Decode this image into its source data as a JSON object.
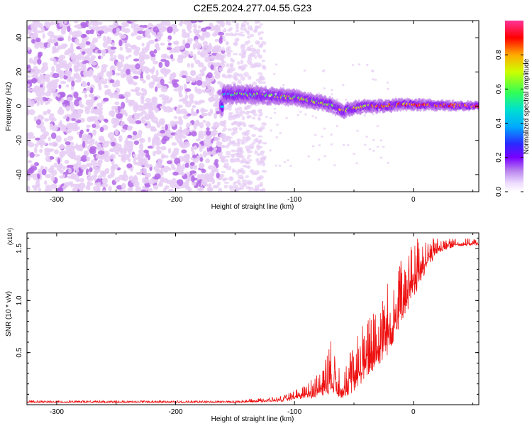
{
  "figure": {
    "title": "C2E5.2024.277.04.55.G23"
  },
  "chart_data": [
    {
      "type": "heatmap",
      "title": "C2E5.2024.277.04.55.G23",
      "xlabel": "Height of straight line (km)",
      "ylabel": "Frequency (Hz)",
      "xlim": [
        -325,
        55
      ],
      "ylim": [
        -50,
        50
      ],
      "x_ticks": [
        -300,
        -200,
        -100,
        0
      ],
      "y_ticks": [
        -40,
        -20,
        0,
        20,
        40
      ],
      "colorbar": {
        "label": "Normalized spectral amplitude",
        "range": [
          0,
          1
        ],
        "ticks": [
          0.0,
          0.2,
          0.4,
          0.6,
          0.8
        ],
        "colors": [
          "#ffffff",
          "#e6ccf5",
          "#b266e6",
          "#7a00ff",
          "#2a2aff",
          "#00ccff",
          "#33ff66",
          "#ccff00",
          "#ff9900",
          "#ff0000",
          "#ff3399"
        ]
      },
      "features": {
        "noise_region_x": [
          -325,
          -160
        ],
        "scatter_region_x": [
          -160,
          -125
        ],
        "signal_start_x": -162,
        "signal_center_hz": [
          {
            "x": -160,
            "hz": 7
          },
          {
            "x": -140,
            "hz": 7
          },
          {
            "x": -120,
            "hz": 6
          },
          {
            "x": -100,
            "hz": 5
          },
          {
            "x": -85,
            "hz": 3
          },
          {
            "x": -70,
            "hz": 1
          },
          {
            "x": -60,
            "hz": -3
          },
          {
            "x": -50,
            "hz": -1
          },
          {
            "x": -40,
            "hz": 0
          },
          {
            "x": -25,
            "hz": 0
          },
          {
            "x": -10,
            "hz": 1
          },
          {
            "x": 0,
            "hz": 1
          },
          {
            "x": 20,
            "hz": 0.5
          },
          {
            "x": 55,
            "hz": 0
          }
        ]
      }
    },
    {
      "type": "line",
      "xlabel": "Height of straight line (km)",
      "ylabel": "SNR (10 * v/v)",
      "y_multiplier": "(x10⁴)",
      "xlim": [
        -325,
        55
      ],
      "ylim": [
        0,
        1.65
      ],
      "x_ticks": [
        -300,
        -200,
        -100,
        0
      ],
      "y_ticks": [
        0.5,
        1.0,
        1.5
      ],
      "line_color": "#ee1111",
      "envelope": [
        {
          "x": -325,
          "base": 0.02,
          "peak": 0.04
        },
        {
          "x": -150,
          "base": 0.02,
          "peak": 0.04
        },
        {
          "x": -110,
          "base": 0.03,
          "peak": 0.08
        },
        {
          "x": -95,
          "base": 0.05,
          "peak": 0.17
        },
        {
          "x": -80,
          "base": 0.07,
          "peak": 0.3
        },
        {
          "x": -70,
          "base": 0.1,
          "peak": 0.63
        },
        {
          "x": -60,
          "base": 0.06,
          "peak": 0.3
        },
        {
          "x": -50,
          "base": 0.12,
          "peak": 0.62
        },
        {
          "x": -40,
          "base": 0.25,
          "peak": 0.85
        },
        {
          "x": -30,
          "base": 0.35,
          "peak": 1.0
        },
        {
          "x": -20,
          "base": 0.5,
          "peak": 1.25
        },
        {
          "x": -10,
          "base": 0.8,
          "peak": 1.4
        },
        {
          "x": 0,
          "base": 1.0,
          "peak": 1.55
        },
        {
          "x": 8,
          "base": 1.2,
          "peak": 1.65
        },
        {
          "x": 20,
          "base": 1.45,
          "peak": 1.6
        },
        {
          "x": 35,
          "base": 1.52,
          "peak": 1.6
        },
        {
          "x": 55,
          "base": 1.53,
          "peak": 1.59
        }
      ]
    }
  ]
}
